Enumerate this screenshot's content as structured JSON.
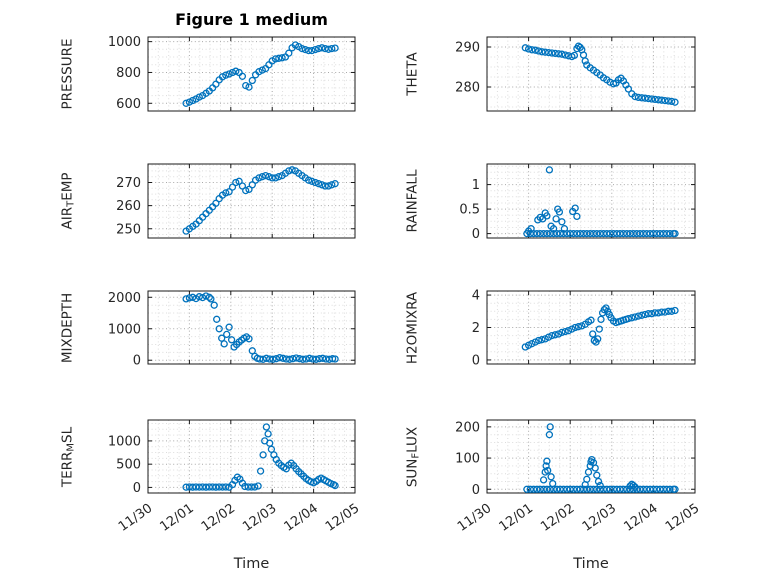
{
  "title": "Figure 1 medium",
  "xlabel": "Time",
  "marker_color": "#0072BD",
  "x_axis": {
    "xlim": [
      0,
      5
    ],
    "xticks": [
      0,
      1,
      2,
      3,
      4,
      5
    ],
    "x_tick_labels": [
      "11/30",
      "12/01",
      "12/02",
      "12/03",
      "12/04",
      "12/05"
    ]
  },
  "chart_data": [
    {
      "name": "pressure",
      "type": "scatter",
      "row": 0,
      "col": 0,
      "ylabel": {
        "pre": "PRESSURE",
        "sub": "",
        "post": ""
      },
      "ylim": [
        550,
        1030
      ],
      "yticks": [
        600,
        800,
        1000
      ],
      "ytick_labels": [
        "600",
        "800",
        "1000"
      ],
      "x": [
        0.92,
        1.0,
        1.08,
        1.16,
        1.24,
        1.32,
        1.4,
        1.48,
        1.56,
        1.64,
        1.72,
        1.8,
        1.88,
        1.96,
        2.04,
        2.12,
        2.2,
        2.28,
        2.36,
        2.44,
        2.52,
        2.6,
        2.68,
        2.76,
        2.84,
        2.92,
        3.0,
        3.08,
        3.16,
        3.24,
        3.32,
        3.4,
        3.48,
        3.56,
        3.64,
        3.72,
        3.8,
        3.88,
        3.96,
        4.04,
        4.12,
        4.2,
        4.28,
        4.36,
        4.44,
        4.52
      ],
      "y": [
        600,
        608,
        618,
        628,
        640,
        650,
        665,
        680,
        700,
        724,
        752,
        772,
        782,
        790,
        800,
        808,
        800,
        775,
        715,
        705,
        748,
        785,
        805,
        815,
        825,
        850,
        875,
        888,
        892,
        895,
        900,
        925,
        960,
        978,
        968,
        955,
        948,
        942,
        942,
        948,
        955,
        960,
        955,
        950,
        955,
        958
      ]
    },
    {
      "name": "theta",
      "type": "scatter",
      "row": 0,
      "col": 1,
      "ylabel": {
        "pre": "THETA",
        "sub": "",
        "post": ""
      },
      "ylim": [
        274,
        292.5
      ],
      "yticks": [
        280,
        290
      ],
      "ytick_labels": [
        "280",
        "290"
      ],
      "x": [
        0.92,
        1.0,
        1.08,
        1.16,
        1.24,
        1.32,
        1.4,
        1.48,
        1.56,
        1.64,
        1.72,
        1.8,
        1.88,
        1.96,
        2.04,
        2.1,
        2.16,
        2.2,
        2.24,
        2.28,
        2.32,
        2.36,
        2.4,
        2.48,
        2.56,
        2.64,
        2.72,
        2.8,
        2.88,
        2.96,
        3.04,
        3.1,
        3.16,
        3.22,
        3.28,
        3.34,
        3.4,
        3.48,
        3.56,
        3.64,
        3.72,
        3.8,
        3.88,
        3.96,
        4.04,
        4.12,
        4.2,
        4.28,
        4.36,
        4.44,
        4.52
      ],
      "y": [
        289.8,
        289.5,
        289.3,
        289.2,
        289.0,
        288.8,
        288.7,
        288.6,
        288.5,
        288.4,
        288.3,
        288.2,
        288.0,
        287.8,
        287.6,
        287.9,
        289.6,
        290.2,
        289.9,
        289.3,
        288.0,
        286.5,
        285.5,
        284.8,
        284.2,
        283.6,
        283.0,
        282.3,
        281.8,
        281.2,
        280.8,
        281.0,
        281.8,
        282.2,
        281.5,
        280.5,
        279.5,
        278.3,
        277.6,
        277.4,
        277.3,
        277.2,
        277.1,
        277.0,
        276.9,
        276.8,
        276.7,
        276.6,
        276.5,
        276.4,
        276.2
      ]
    },
    {
      "name": "airtemp",
      "type": "scatter",
      "row": 1,
      "col": 0,
      "ylabel": {
        "pre": "AIR",
        "sub": "T",
        "post": "EMP"
      },
      "ylim": [
        246,
        278
      ],
      "yticks": [
        250,
        260,
        270
      ],
      "ytick_labels": [
        "250",
        "260",
        "270"
      ],
      "x": [
        0.92,
        1.0,
        1.08,
        1.16,
        1.24,
        1.32,
        1.4,
        1.48,
        1.56,
        1.64,
        1.72,
        1.8,
        1.88,
        1.96,
        2.04,
        2.12,
        2.2,
        2.28,
        2.36,
        2.44,
        2.52,
        2.6,
        2.68,
        2.76,
        2.84,
        2.92,
        3.0,
        3.08,
        3.16,
        3.24,
        3.32,
        3.4,
        3.48,
        3.56,
        3.64,
        3.72,
        3.8,
        3.88,
        3.96,
        4.04,
        4.12,
        4.2,
        4.28,
        4.36,
        4.44,
        4.52
      ],
      "y": [
        249,
        250,
        251,
        252,
        253.5,
        255,
        256.5,
        258,
        259.5,
        261,
        263,
        264.5,
        265.5,
        266,
        268,
        270,
        270.5,
        268.5,
        266.5,
        267,
        269,
        271,
        272,
        272.5,
        273,
        272.5,
        272,
        272,
        272.5,
        273,
        274,
        275,
        275.5,
        275,
        274,
        273,
        272,
        271,
        270.5,
        270,
        269.5,
        269,
        268.5,
        268.5,
        269,
        269.5
      ]
    },
    {
      "name": "rainfall",
      "type": "scatter",
      "row": 1,
      "col": 1,
      "ylabel": {
        "pre": "RAINFALL",
        "sub": "",
        "post": ""
      },
      "ylim": [
        -0.09,
        1.42
      ],
      "yticks": [
        0,
        0.5,
        1
      ],
      "ytick_labels": [
        "0",
        "0.5",
        "1"
      ],
      "x": [
        0.96,
        1.04,
        1.12,
        1.2,
        1.28,
        1.36,
        1.44,
        1.52,
        1.6,
        1.68,
        1.76,
        1.84,
        1.92,
        2.0,
        2.08,
        2.16,
        2.24,
        2.32,
        2.4,
        2.48,
        2.56,
        2.64,
        2.72,
        2.8,
        2.88,
        2.96,
        3.04,
        3.12,
        3.2,
        3.28,
        3.36,
        3.44,
        3.52,
        3.6,
        3.68,
        3.76,
        3.84,
        3.92,
        4.0,
        4.08,
        4.16,
        4.24,
        4.32,
        4.4,
        4.48,
        4.52,
        1.0,
        1.06,
        1.22,
        1.28,
        1.34,
        1.4,
        1.44,
        1.5,
        1.54,
        1.6,
        1.66,
        1.7,
        1.74,
        1.8,
        1.86,
        2.06,
        2.12,
        2.16
      ],
      "y": [
        0,
        0,
        0,
        0,
        0,
        0,
        0,
        0,
        0,
        0,
        0,
        0,
        0,
        0,
        0,
        0,
        0,
        0,
        0,
        0,
        0,
        0,
        0,
        0,
        0,
        0,
        0,
        0,
        0,
        0,
        0,
        0,
        0,
        0,
        0,
        0,
        0,
        0,
        0,
        0,
        0,
        0,
        0,
        0,
        0,
        0,
        0.05,
        0.1,
        0.28,
        0.33,
        0.3,
        0.42,
        0.36,
        1.3,
        0.15,
        0.1,
        0.3,
        0.5,
        0.44,
        0.24,
        0.1,
        0.45,
        0.52,
        0.35
      ]
    },
    {
      "name": "mixdepth",
      "type": "scatter",
      "row": 2,
      "col": 0,
      "ylabel": {
        "pre": "MIXDEPTH",
        "sub": "",
        "post": ""
      },
      "ylim": [
        -120,
        2200
      ],
      "yticks": [
        0,
        1000,
        2000
      ],
      "ytick_labels": [
        "0",
        "1000",
        "2000"
      ],
      "x": [
        0.92,
        1.0,
        1.08,
        1.16,
        1.24,
        1.32,
        1.4,
        1.48,
        1.52,
        1.6,
        1.66,
        1.72,
        1.78,
        1.84,
        1.9,
        1.96,
        2.02,
        2.08,
        2.14,
        2.2,
        2.26,
        2.32,
        2.38,
        2.44,
        2.52,
        2.58,
        2.64,
        2.7,
        2.78,
        2.86,
        2.94,
        3.02,
        3.1,
        3.18,
        3.26,
        3.34,
        3.42,
        3.5,
        3.58,
        3.66,
        3.74,
        3.82,
        3.9,
        3.98,
        4.06,
        4.14,
        4.22,
        4.3,
        4.38,
        4.46,
        4.52
      ],
      "y": [
        1950,
        1980,
        2000,
        1960,
        2020,
        1990,
        2040,
        2000,
        1950,
        1750,
        1300,
        1000,
        700,
        520,
        820,
        1050,
        650,
        420,
        500,
        580,
        640,
        700,
        740,
        680,
        300,
        120,
        60,
        40,
        30,
        60,
        40,
        30,
        50,
        80,
        60,
        40,
        30,
        50,
        70,
        50,
        30,
        40,
        60,
        40,
        30,
        50,
        60,
        40,
        30,
        50,
        40
      ]
    },
    {
      "name": "h2omixra",
      "type": "scatter",
      "row": 2,
      "col": 1,
      "ylabel": {
        "pre": "H2OMIXRA",
        "sub": "",
        "post": ""
      },
      "ylim": [
        -0.25,
        4.25
      ],
      "yticks": [
        0,
        2,
        4
      ],
      "ytick_labels": [
        "0",
        "2",
        "4"
      ],
      "x": [
        0.92,
        1.0,
        1.08,
        1.16,
        1.24,
        1.32,
        1.4,
        1.48,
        1.56,
        1.64,
        1.72,
        1.8,
        1.88,
        1.96,
        2.04,
        2.12,
        2.2,
        2.28,
        2.36,
        2.44,
        2.5,
        2.54,
        2.58,
        2.62,
        2.66,
        2.7,
        2.74,
        2.78,
        2.82,
        2.86,
        2.9,
        2.94,
        2.98,
        3.04,
        3.1,
        3.16,
        3.22,
        3.28,
        3.34,
        3.4,
        3.48,
        3.56,
        3.64,
        3.72,
        3.8,
        3.88,
        3.96,
        4.04,
        4.12,
        4.2,
        4.28,
        4.36,
        4.44,
        4.52
      ],
      "y": [
        0.8,
        0.9,
        1.0,
        1.1,
        1.2,
        1.25,
        1.3,
        1.4,
        1.5,
        1.55,
        1.6,
        1.7,
        1.75,
        1.8,
        1.9,
        2.0,
        2.05,
        2.1,
        2.2,
        2.35,
        2.45,
        1.6,
        1.2,
        1.1,
        1.3,
        1.9,
        2.5,
        2.9,
        3.1,
        3.2,
        3.0,
        2.8,
        2.6,
        2.4,
        2.3,
        2.35,
        2.4,
        2.45,
        2.5,
        2.55,
        2.6,
        2.65,
        2.7,
        2.75,
        2.8,
        2.85,
        2.85,
        2.9,
        2.9,
        2.95,
        2.95,
        3.0,
        3.0,
        3.05
      ]
    },
    {
      "name": "terrmsl",
      "type": "scatter",
      "row": 3,
      "col": 0,
      "ylabel": {
        "pre": "TERR",
        "sub": "M",
        "post": "SL"
      },
      "ylim": [
        -120,
        1450
      ],
      "yticks": [
        0,
        500,
        1000
      ],
      "ytick_labels": [
        "0",
        "500",
        "1000"
      ],
      "x": [
        0.92,
        1.0,
        1.08,
        1.16,
        1.24,
        1.32,
        1.4,
        1.48,
        1.56,
        1.64,
        1.72,
        1.8,
        1.88,
        1.96,
        2.04,
        2.1,
        2.16,
        2.22,
        2.28,
        2.34,
        2.42,
        2.5,
        2.58,
        2.66,
        2.72,
        2.78,
        2.82,
        2.86,
        2.9,
        2.94,
        2.98,
        3.04,
        3.1,
        3.16,
        3.22,
        3.28,
        3.34,
        3.4,
        3.46,
        3.52,
        3.58,
        3.64,
        3.7,
        3.76,
        3.82,
        3.88,
        3.94,
        4.0,
        4.06,
        4.12,
        4.18,
        4.24,
        4.3,
        4.36,
        4.42,
        4.48,
        4.52
      ],
      "y": [
        5,
        8,
        5,
        10,
        6,
        8,
        5,
        10,
        8,
        5,
        10,
        6,
        8,
        5,
        60,
        150,
        220,
        180,
        90,
        20,
        10,
        8,
        10,
        30,
        350,
        700,
        1000,
        1300,
        1150,
        950,
        820,
        700,
        600,
        520,
        470,
        430,
        400,
        480,
        520,
        470,
        400,
        340,
        290,
        240,
        190,
        150,
        120,
        100,
        130,
        170,
        200,
        170,
        140,
        110,
        80,
        60,
        40
      ]
    },
    {
      "name": "sunflux",
      "type": "scatter",
      "row": 3,
      "col": 1,
      "ylabel": {
        "pre": "SUN",
        "sub": "F",
        "post": "LUX"
      },
      "ylim": [
        -12,
        222
      ],
      "yticks": [
        0,
        100,
        200
      ],
      "ytick_labels": [
        "0",
        "100",
        "200"
      ],
      "x": [
        0.96,
        1.04,
        1.12,
        1.2,
        1.28,
        1.36,
        1.44,
        1.52,
        1.6,
        1.68,
        1.76,
        1.84,
        1.92,
        2.0,
        2.08,
        2.16,
        2.24,
        2.32,
        2.4,
        2.48,
        2.56,
        2.64,
        2.72,
        2.8,
        2.88,
        2.96,
        3.04,
        3.12,
        3.2,
        3.28,
        3.36,
        3.44,
        3.52,
        3.6,
        3.68,
        3.76,
        3.84,
        3.92,
        4.0,
        4.08,
        4.16,
        4.24,
        4.32,
        4.4,
        4.48,
        4.52,
        1.36,
        1.4,
        1.42,
        1.44,
        1.46,
        1.5,
        1.52,
        1.54,
        1.58,
        2.36,
        2.4,
        2.44,
        2.48,
        2.5,
        2.52,
        2.56,
        2.6,
        2.64,
        2.68,
        2.72,
        3.44,
        3.48,
        3.52,
        3.56
      ],
      "y": [
        0,
        0,
        0,
        0,
        0,
        0,
        0,
        0,
        0,
        0,
        0,
        0,
        0,
        0,
        0,
        0,
        0,
        0,
        0,
        0,
        0,
        0,
        0,
        0,
        0,
        0,
        0,
        0,
        0,
        0,
        0,
        0,
        0,
        0,
        0,
        0,
        0,
        0,
        0,
        0,
        0,
        0,
        0,
        0,
        0,
        0,
        30,
        55,
        75,
        90,
        60,
        175,
        200,
        40,
        18,
        15,
        32,
        55,
        75,
        88,
        95,
        85,
        68,
        45,
        25,
        12,
        10,
        16,
        12,
        7
      ]
    }
  ]
}
